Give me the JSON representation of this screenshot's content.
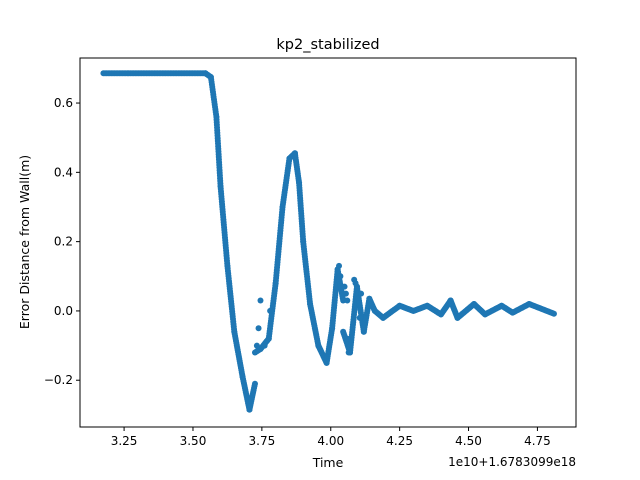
{
  "chart_data": {
    "type": "scatter",
    "title": "kp2_stabilized",
    "xlabel": "Time",
    "ylabel": "Error Distance from Wall(m)",
    "x_offset_label": "1e10+1.6783099e18",
    "xlim": [
      3.09,
      4.89
    ],
    "ylim": [
      -0.335,
      0.73
    ],
    "xticks": [
      3.25,
      3.5,
      3.75,
      4.0,
      4.25,
      4.5,
      4.75
    ],
    "xtick_labels": [
      "3.25",
      "3.50",
      "3.75",
      "4.00",
      "4.25",
      "4.50",
      "4.75"
    ],
    "yticks": [
      -0.2,
      0.0,
      0.2,
      0.4,
      0.6
    ],
    "ytick_labels": [
      "−0.2",
      "0.0",
      "0.2",
      "0.4",
      "0.6"
    ],
    "marker_color": "#1f77b4",
    "grid": false,
    "legend": "none",
    "segments": [
      {
        "x": [
          3.175,
          3.545
        ],
        "y": [
          0.686,
          0.686
        ]
      },
      {
        "x": [
          3.545,
          3.565
        ],
        "y": [
          0.686,
          0.675
        ]
      },
      {
        "x": [
          3.565,
          3.585
        ],
        "y": [
          0.675,
          0.56
        ]
      },
      {
        "x": [
          3.585,
          3.6
        ],
        "y": [
          0.56,
          0.36
        ]
      },
      {
        "x": [
          3.6,
          3.625
        ],
        "y": [
          0.36,
          0.13
        ]
      },
      {
        "x": [
          3.625,
          3.65
        ],
        "y": [
          0.13,
          -0.06
        ]
      },
      {
        "x": [
          3.65,
          3.68
        ],
        "y": [
          -0.06,
          -0.19
        ]
      },
      {
        "x": [
          3.68,
          3.705
        ],
        "y": [
          -0.19,
          -0.285
        ]
      },
      {
        "x": [
          3.705,
          3.725
        ],
        "y": [
          -0.285,
          -0.21
        ]
      },
      {
        "x": [
          3.725,
          3.745
        ],
        "y": [
          -0.12,
          -0.11
        ]
      },
      {
        "x": [
          3.745,
          3.775
        ],
        "y": [
          -0.11,
          -0.08
        ]
      },
      {
        "x": [
          3.775,
          3.8
        ],
        "y": [
          -0.08,
          0.08
        ]
      },
      {
        "x": [
          3.8,
          3.825
        ],
        "y": [
          0.08,
          0.3
        ]
      },
      {
        "x": [
          3.825,
          3.85
        ],
        "y": [
          0.3,
          0.44
        ]
      },
      {
        "x": [
          3.85,
          3.87
        ],
        "y": [
          0.44,
          0.455
        ]
      },
      {
        "x": [
          3.87,
          3.885
        ],
        "y": [
          0.455,
          0.37
        ]
      },
      {
        "x": [
          3.885,
          3.9
        ],
        "y": [
          0.37,
          0.2
        ]
      },
      {
        "x": [
          3.9,
          3.925
        ],
        "y": [
          0.2,
          0.02
        ]
      },
      {
        "x": [
          3.925,
          3.955
        ],
        "y": [
          0.02,
          -0.1
        ]
      },
      {
        "x": [
          3.955,
          3.985
        ],
        "y": [
          -0.1,
          -0.15
        ]
      },
      {
        "x": [
          3.985,
          4.005
        ],
        "y": [
          -0.15,
          -0.05
        ]
      },
      {
        "x": [
          4.005,
          4.025
        ],
        "y": [
          -0.05,
          0.12
        ]
      },
      {
        "x": [
          4.025,
          4.045
        ],
        "y": [
          0.12,
          0.03
        ]
      },
      {
        "x": [
          4.045,
          4.07
        ],
        "y": [
          -0.06,
          -0.12
        ]
      },
      {
        "x": [
          4.07,
          4.095
        ],
        "y": [
          -0.12,
          0.07
        ]
      },
      {
        "x": [
          4.095,
          4.12
        ],
        "y": [
          0.07,
          -0.06
        ]
      },
      {
        "x": [
          4.12,
          4.14
        ],
        "y": [
          -0.06,
          0.035
        ]
      },
      {
        "x": [
          4.14,
          4.16
        ],
        "y": [
          0.035,
          0.0
        ]
      },
      {
        "x": [
          4.16,
          4.19
        ],
        "y": [
          0.0,
          -0.02
        ]
      },
      {
        "x": [
          4.19,
          4.25
        ],
        "y": [
          -0.02,
          0.015
        ]
      },
      {
        "x": [
          4.25,
          4.3
        ],
        "y": [
          0.015,
          0.0
        ]
      },
      {
        "x": [
          4.3,
          4.35
        ],
        "y": [
          0.0,
          0.015
        ]
      },
      {
        "x": [
          4.35,
          4.4
        ],
        "y": [
          0.015,
          -0.01
        ]
      },
      {
        "x": [
          4.4,
          4.435
        ],
        "y": [
          -0.01,
          0.03
        ]
      },
      {
        "x": [
          4.435,
          4.46
        ],
        "y": [
          0.03,
          -0.02
        ]
      },
      {
        "x": [
          4.46,
          4.52
        ],
        "y": [
          -0.02,
          0.02
        ]
      },
      {
        "x": [
          4.52,
          4.56
        ],
        "y": [
          0.02,
          -0.01
        ]
      },
      {
        "x": [
          4.56,
          4.62
        ],
        "y": [
          -0.01,
          0.015
        ]
      },
      {
        "x": [
          4.62,
          4.66
        ],
        "y": [
          0.015,
          -0.005
        ]
      },
      {
        "x": [
          4.66,
          4.72
        ],
        "y": [
          -0.005,
          0.02
        ]
      },
      {
        "x": [
          4.72,
          4.81
        ],
        "y": [
          0.02,
          -0.008
        ]
      }
    ],
    "scattered_points": [
      [
        3.745,
        0.03
      ],
      [
        3.738,
        -0.05
      ],
      [
        3.732,
        -0.1
      ],
      [
        3.76,
        -0.1
      ],
      [
        3.78,
        0.0
      ],
      [
        4.05,
        0.07
      ],
      [
        4.055,
        0.05
      ],
      [
        4.06,
        0.03
      ],
      [
        4.06,
        -0.08
      ],
      [
        4.065,
        -0.12
      ],
      [
        4.085,
        0.09
      ],
      [
        4.09,
        0.08
      ],
      [
        4.11,
        0.05
      ],
      [
        4.105,
        -0.02
      ],
      [
        4.03,
        0.13
      ],
      [
        4.035,
        0.1
      ]
    ]
  }
}
